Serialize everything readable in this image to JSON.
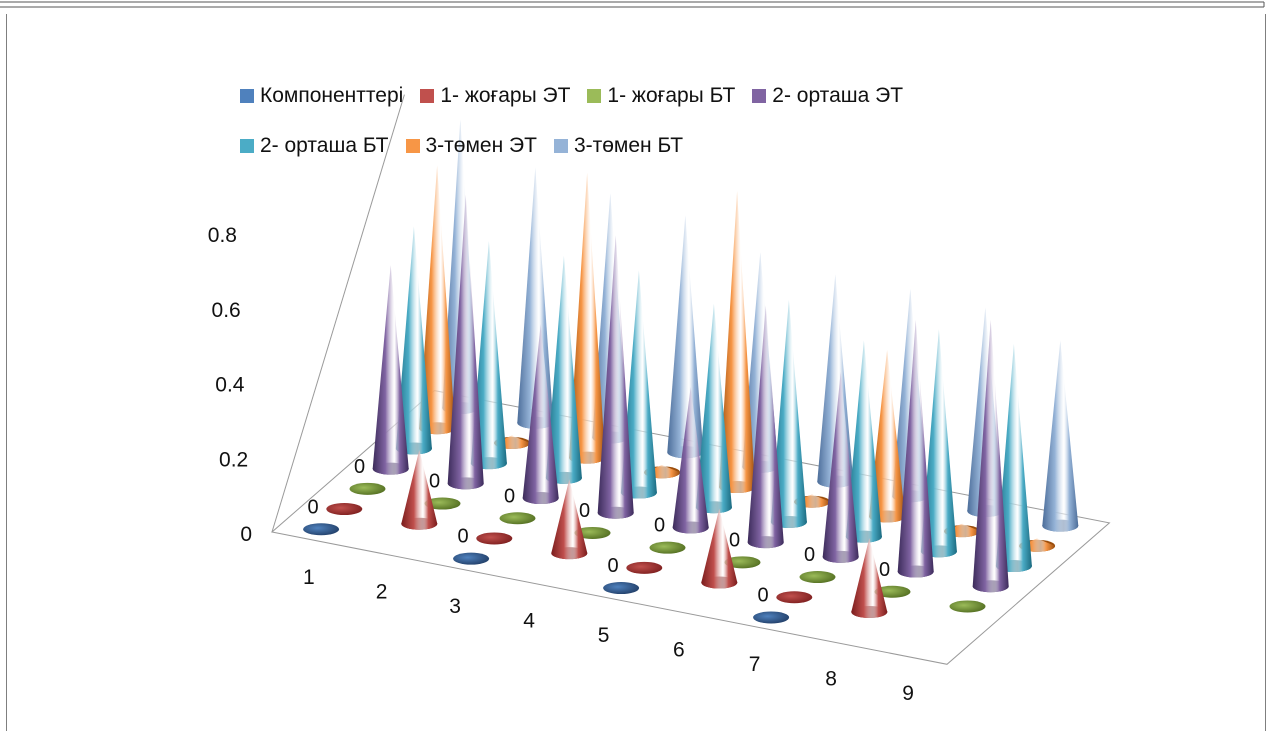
{
  "chart_data": {
    "type": "bar",
    "shape": "cone-3d",
    "title": "",
    "xlabel": "",
    "ylabel": "",
    "ylim": [
      0,
      0.8
    ],
    "y_ticks": [
      "0",
      "0.2",
      "0.4",
      "0.6",
      "0.8"
    ],
    "categories": [
      "1",
      "2",
      "3",
      "4",
      "5",
      "6",
      "7",
      "8",
      "9"
    ],
    "grid": false,
    "legend_position": "top",
    "series": [
      {
        "name": "Компоненттері",
        "color": "#4f81bd",
        "dark": "#1f3b63",
        "values": [
          0,
          null,
          0,
          null,
          0,
          null,
          0,
          null,
          null
        ]
      },
      {
        "name": "1- жоғары ЭТ",
        "color": "#c0504d",
        "dark": "#7a1c1c",
        "values": [
          0,
          0.2,
          0,
          0.2,
          0,
          0.2,
          0,
          0.2,
          null
        ]
      },
      {
        "name": "1- жоғары БТ",
        "color": "#9bbb59",
        "dark": "#4f6a1e",
        "values": [
          0,
          0,
          0,
          0,
          0,
          0,
          0,
          0,
          0
        ]
      },
      {
        "name": "2- орташа ЭТ",
        "color": "#8064a2",
        "dark": "#3c2b5a",
        "values": [
          0.55,
          0.78,
          0.47,
          0.75,
          0.38,
          0.64,
          0.5,
          0.68,
          0.72
        ]
      },
      {
        "name": "2- орташа БТ",
        "color": "#4bacc6",
        "dark": "#1b6a80",
        "values": [
          0.6,
          0.6,
          0.6,
          0.6,
          0.55,
          0.6,
          0.53,
          0.6,
          0.6
        ]
      },
      {
        "name": "3-төмен ЭТ",
        "color": "#f79646",
        "dark": "#9a4d0c",
        "values": [
          0.71,
          0.02,
          0.77,
          0.02,
          0.8,
          0.02,
          0.45,
          0.02,
          0.02
        ]
      },
      {
        "name": "3-төмен БТ",
        "color": "#95b3d7",
        "dark": "#4c6d99",
        "values": [
          0.78,
          0.69,
          0.66,
          0.64,
          0.58,
          0.56,
          0.56,
          0.55,
          0.5
        ]
      }
    ],
    "data_labels": [
      {
        "series": "Компоненттері",
        "category": "1",
        "text": "0"
      },
      {
        "series": "Компоненттері",
        "category": "3",
        "text": "0"
      },
      {
        "series": "Компоненттері",
        "category": "5",
        "text": "0"
      },
      {
        "series": "Компоненттері",
        "category": "7",
        "text": "0"
      },
      {
        "series": "1- жоғары БТ",
        "category": "1",
        "text": "0"
      },
      {
        "series": "1- жоғары БТ",
        "category": "2",
        "text": "0"
      },
      {
        "series": "1- жоғары БТ",
        "category": "3",
        "text": "0"
      },
      {
        "series": "1- жоғары БТ",
        "category": "4",
        "text": "0"
      },
      {
        "series": "1- жоғары БТ",
        "category": "5",
        "text": "0"
      },
      {
        "series": "1- жоғары БТ",
        "category": "6",
        "text": "0"
      },
      {
        "series": "1- жоғары БТ",
        "category": "7",
        "text": "0"
      },
      {
        "series": "1- жоғары БТ",
        "category": "8",
        "text": "0"
      }
    ]
  }
}
